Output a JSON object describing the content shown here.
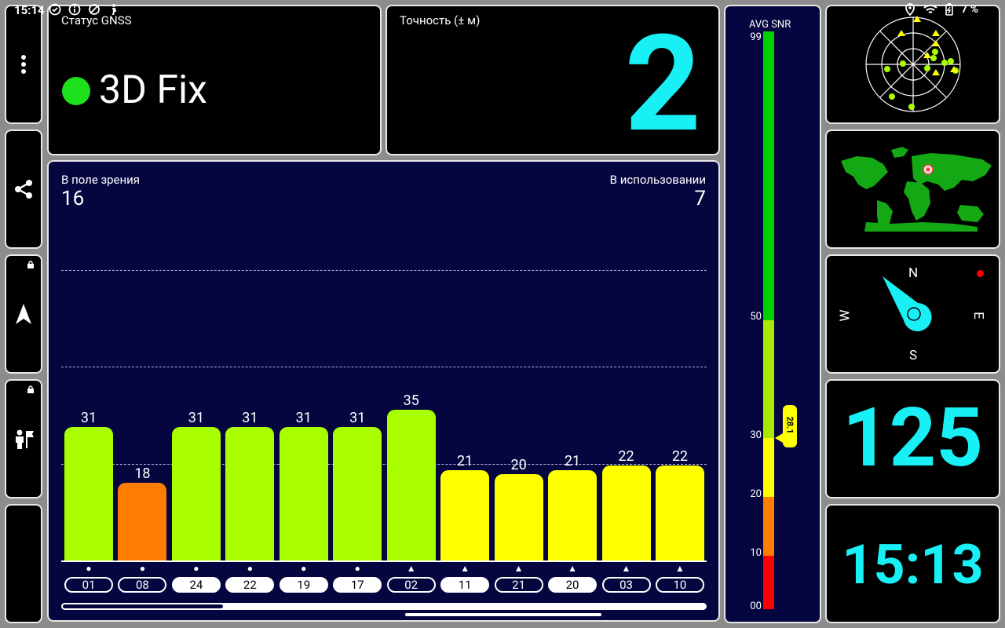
{
  "statusbar": {
    "time": "15:14",
    "battery": "7 %"
  },
  "gnss_status": {
    "label": "Статус GNSS",
    "value": "3D Fix",
    "indicator_color": "#1ee11e"
  },
  "accuracy": {
    "label": "Точность (± м)",
    "value": "2"
  },
  "satellites": {
    "in_view_label": "В поле зрения",
    "in_view_count": "16",
    "in_use_label": "В использовании",
    "in_use_count": "7",
    "bars": [
      {
        "prn": "01",
        "snr": "31",
        "color": "#a9ff00",
        "symbol": "●",
        "used": false
      },
      {
        "prn": "08",
        "snr": "18",
        "color": "#ff7d00",
        "symbol": "●",
        "used": false
      },
      {
        "prn": "24",
        "snr": "31",
        "color": "#a9ff00",
        "symbol": "●",
        "used": true
      },
      {
        "prn": "22",
        "snr": "31",
        "color": "#a9ff00",
        "symbol": "●",
        "used": true
      },
      {
        "prn": "19",
        "snr": "31",
        "color": "#a9ff00",
        "symbol": "●",
        "used": true
      },
      {
        "prn": "17",
        "snr": "31",
        "color": "#a9ff00",
        "symbol": "●",
        "used": true
      },
      {
        "prn": "02",
        "snr": "35",
        "color": "#a9ff00",
        "symbol": "▲",
        "used": false
      },
      {
        "prn": "11",
        "snr": "21",
        "color": "#ffff00",
        "symbol": "▲",
        "used": true
      },
      {
        "prn": "21",
        "snr": "20",
        "color": "#ffff00",
        "symbol": "▲",
        "used": false
      },
      {
        "prn": "20",
        "snr": "21",
        "color": "#ffff00",
        "symbol": "▲",
        "used": true
      },
      {
        "prn": "03",
        "snr": "22",
        "color": "#ffff00",
        "symbol": "▲",
        "used": false
      },
      {
        "prn": "10",
        "snr": "22",
        "color": "#ffff00",
        "symbol": "▲",
        "used": false
      }
    ]
  },
  "snr_gauge": {
    "label": "AVG SNR",
    "ticks": [
      "99",
      "50",
      "30",
      "20",
      "10",
      "00"
    ],
    "avg_value": "28.1"
  },
  "compass": {
    "n": "N",
    "e": "E",
    "s": "S",
    "w": "W"
  },
  "speed_value": "125",
  "clock_value": "15:13",
  "icons": {
    "menu": "more-vert-icon",
    "share": "share-icon",
    "navigate": "navigation-arrow-icon",
    "waypoint": "person-flag-icon",
    "night": "moon-icon"
  }
}
